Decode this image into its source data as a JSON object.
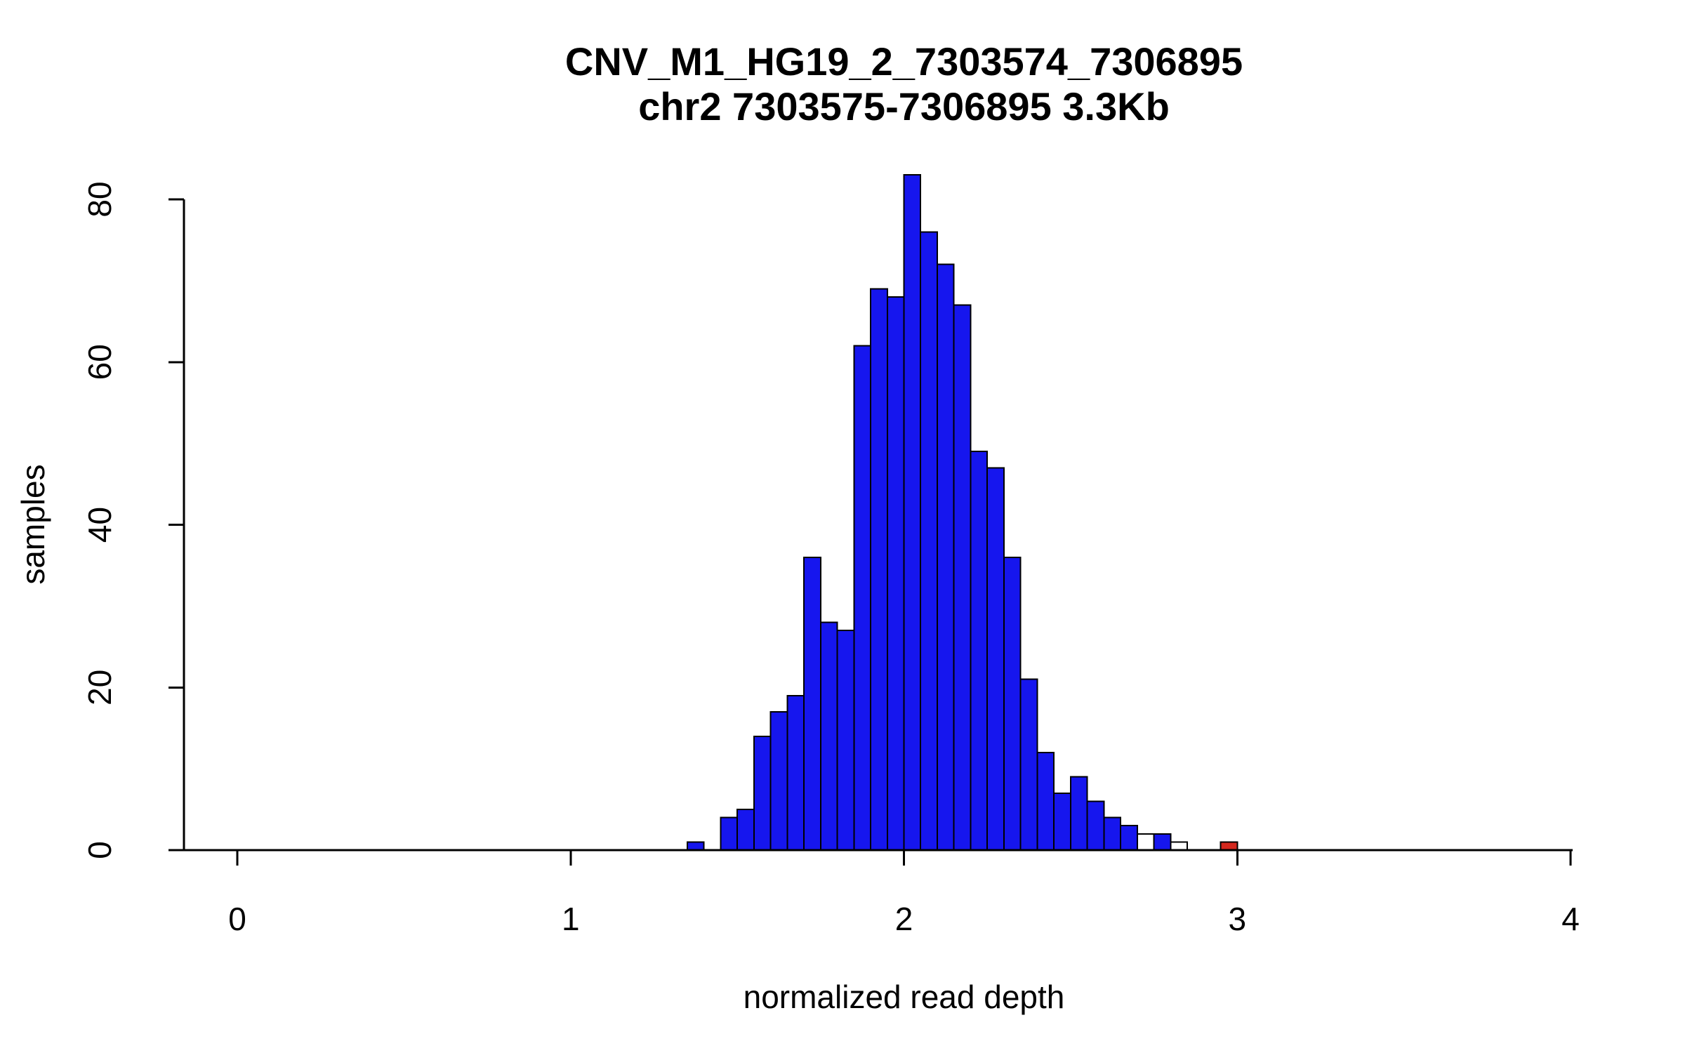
{
  "chart_data": {
    "type": "bar",
    "subtype": "histogram",
    "title": "CNV_M1_HG19_2_7303574_7306895",
    "subtitle": "chr2 7303575-7306895 3.3Kb",
    "xlabel": "normalized read depth",
    "ylabel": "samples",
    "xlim": [
      0,
      4
    ],
    "ylim": [
      0,
      80
    ],
    "x_ticks": [
      0,
      1,
      2,
      3,
      4
    ],
    "y_ticks": [
      0,
      20,
      40,
      60,
      80
    ],
    "bin_width": 0.05,
    "grid": "off",
    "legend": "none",
    "colors": {
      "blue": "#1616ee",
      "red": "#d4281e",
      "white": "#ffffff",
      "axis": "#000000",
      "background": "#ffffff"
    },
    "bins": [
      {
        "start": 1.35,
        "count": 1,
        "color": "blue"
      },
      {
        "start": 1.4,
        "count": 0,
        "color": "blue"
      },
      {
        "start": 1.45,
        "count": 4,
        "color": "blue"
      },
      {
        "start": 1.5,
        "count": 5,
        "color": "blue"
      },
      {
        "start": 1.55,
        "count": 14,
        "color": "blue"
      },
      {
        "start": 1.6,
        "count": 17,
        "color": "blue"
      },
      {
        "start": 1.65,
        "count": 19,
        "color": "blue"
      },
      {
        "start": 1.7,
        "count": 36,
        "color": "blue"
      },
      {
        "start": 1.75,
        "count": 28,
        "color": "blue"
      },
      {
        "start": 1.8,
        "count": 27,
        "color": "blue"
      },
      {
        "start": 1.85,
        "count": 62,
        "color": "blue"
      },
      {
        "start": 1.9,
        "count": 69,
        "color": "blue"
      },
      {
        "start": 1.95,
        "count": 68,
        "color": "blue"
      },
      {
        "start": 2.0,
        "count": 83,
        "color": "blue"
      },
      {
        "start": 2.05,
        "count": 76,
        "color": "blue"
      },
      {
        "start": 2.1,
        "count": 72,
        "color": "blue"
      },
      {
        "start": 2.15,
        "count": 67,
        "color": "blue"
      },
      {
        "start": 2.2,
        "count": 49,
        "color": "blue"
      },
      {
        "start": 2.25,
        "count": 47,
        "color": "blue"
      },
      {
        "start": 2.3,
        "count": 36,
        "color": "blue"
      },
      {
        "start": 2.35,
        "count": 21,
        "color": "blue"
      },
      {
        "start": 2.4,
        "count": 12,
        "color": "blue"
      },
      {
        "start": 2.45,
        "count": 7,
        "color": "blue"
      },
      {
        "start": 2.5,
        "count": 9,
        "color": "blue"
      },
      {
        "start": 2.55,
        "count": 6,
        "color": "blue"
      },
      {
        "start": 2.6,
        "count": 4,
        "color": "blue"
      },
      {
        "start": 2.65,
        "count": 3,
        "color": "blue"
      },
      {
        "start": 2.7,
        "count": 2,
        "color": "white"
      },
      {
        "start": 2.75,
        "count": 2,
        "color": "blue"
      },
      {
        "start": 2.8,
        "count": 1,
        "color": "white"
      },
      {
        "start": 2.95,
        "count": 1,
        "color": "red"
      }
    ]
  },
  "layout_note": "R base-graphics style histogram, no grid, black open axes"
}
